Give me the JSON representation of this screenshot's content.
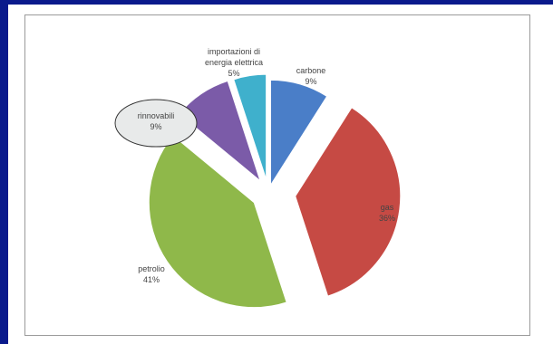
{
  "chart_data": {
    "type": "pie",
    "title": "",
    "exploded": true,
    "slices": [
      {
        "label": "carbone",
        "value": 9,
        "value_label": "9%",
        "color": "#4a7ec8"
      },
      {
        "label": "gas",
        "value": 36,
        "value_label": "36%",
        "color": "#c64a44"
      },
      {
        "label": "petrolio",
        "value": 41,
        "value_label": "41%",
        "color": "#8fb84a"
      },
      {
        "label": "rinnovabili",
        "value": 9,
        "value_label": "9%",
        "color": "#7b5ba8"
      },
      {
        "label": "importazioni di energia elettrica",
        "value": 5,
        "value_label": "5%",
        "color": "#3fb0cc"
      }
    ],
    "highlighted": "rinnovabili",
    "start_angle_deg": 0,
    "direction": "clockwise"
  }
}
